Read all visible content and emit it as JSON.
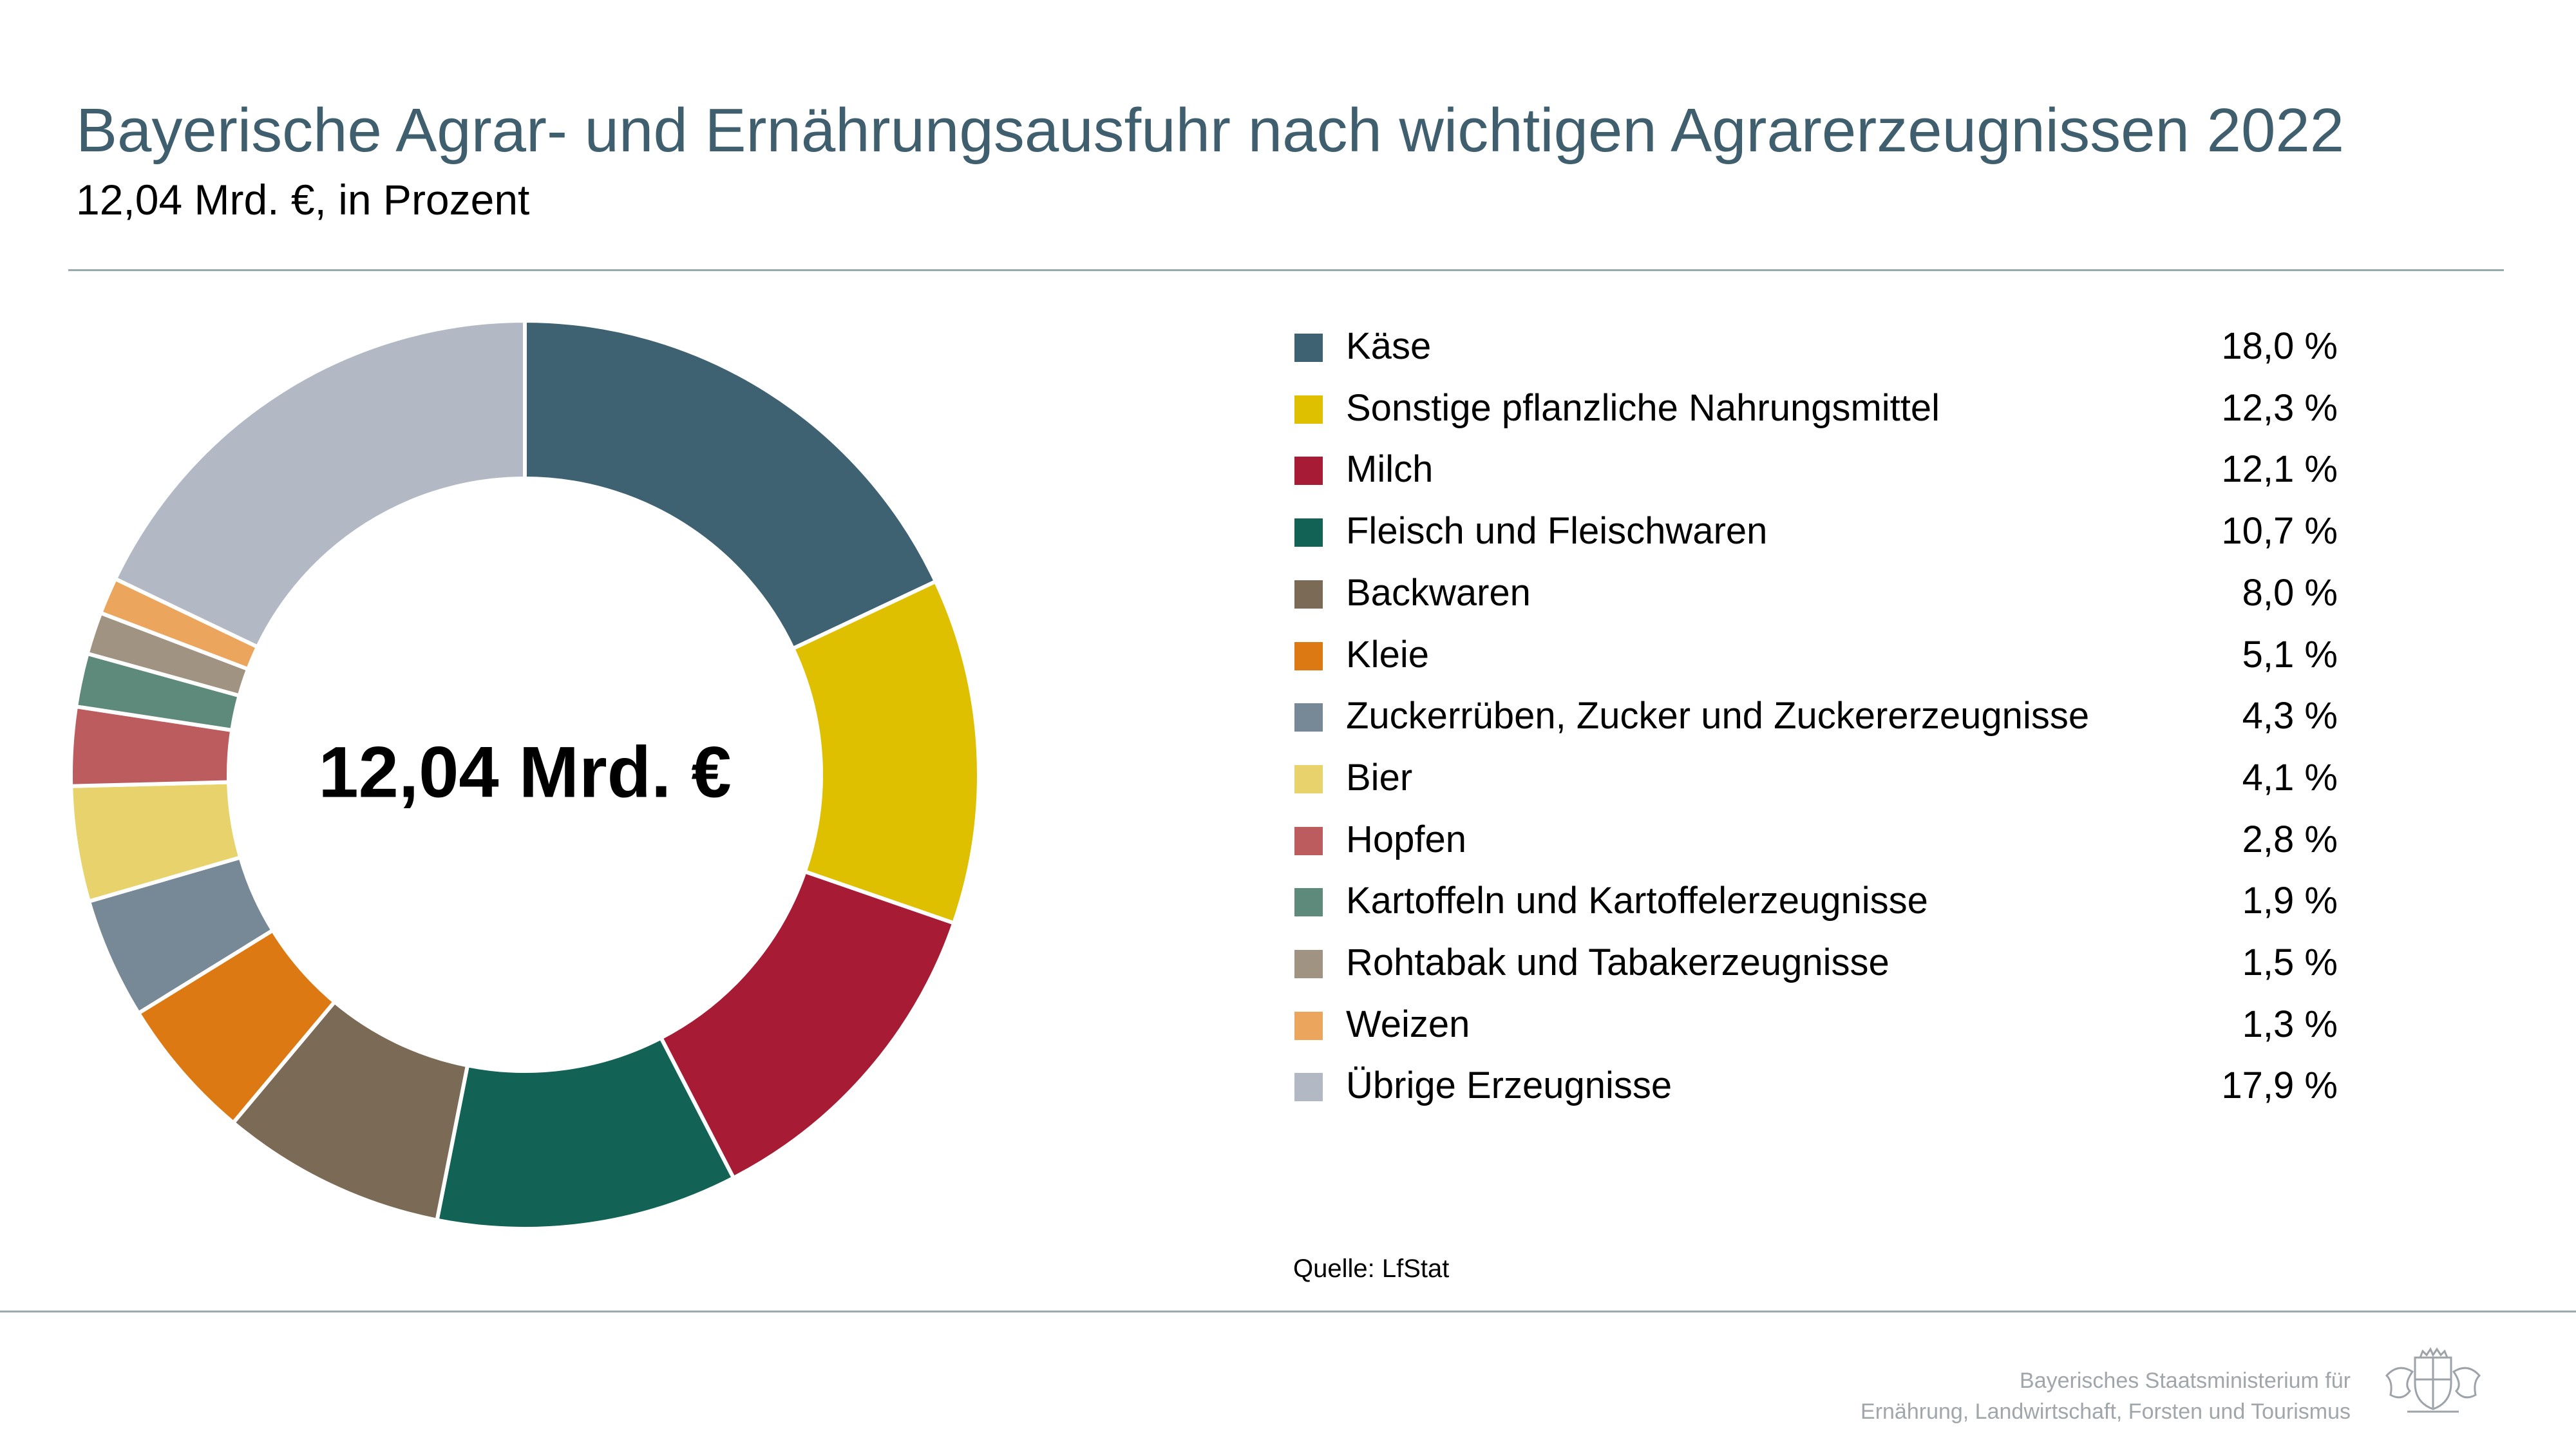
{
  "header": {
    "title": "Bayerische Agrar- und Ernährungsausfuhr nach wichtigen Agrarerzeugnissen 2022",
    "subtitle": "12,04 Mrd. €, in Prozent"
  },
  "chart_data": {
    "type": "pie",
    "center_label": "12,04 Mrd. €",
    "unit": "%",
    "slices": [
      {
        "label": "Käse",
        "value": 18.0,
        "value_label": "18,0 %",
        "color": "#3f6273"
      },
      {
        "label": "Sonstige pflanzliche Nahrungsmittel",
        "value": 12.3,
        "value_label": "12,3 %",
        "color": "#dfc000"
      },
      {
        "label": "Milch",
        "value": 12.1,
        "value_label": "12,1 %",
        "color": "#a71b34"
      },
      {
        "label": "Fleisch und Fleischwaren",
        "value": 10.7,
        "value_label": "10,7 %",
        "color": "#126355"
      },
      {
        "label": "Backwaren",
        "value": 8.0,
        "value_label": "8,0 %",
        "color": "#7b6a55"
      },
      {
        "label": "Kleie",
        "value": 5.1,
        "value_label": "5,1 %",
        "color": "#dc7912"
      },
      {
        "label": "Zuckerrüben, Zucker und Zuckererzeugnisse",
        "value": 4.3,
        "value_label": "4,3 %",
        "color": "#778996"
      },
      {
        "label": "Bier",
        "value": 4.1,
        "value_label": "4,1 %",
        "color": "#e8d26c"
      },
      {
        "label": "Hopfen",
        "value": 2.8,
        "value_label": "2,8 %",
        "color": "#bd5c5e"
      },
      {
        "label": "Kartoffeln und Kartoffelerzeugnisse",
        "value": 1.9,
        "value_label": "1,9 %",
        "color": "#5d8a7b"
      },
      {
        "label": "Rohtabak und Tabakerzeugnisse",
        "value": 1.5,
        "value_label": "1,5 %",
        "color": "#a09382"
      },
      {
        "label": "Weizen",
        "value": 1.3,
        "value_label": "1,3 %",
        "color": "#eba55d"
      },
      {
        "label": "Übrige Erzeugnisse",
        "value": 17.9,
        "value_label": "17,9 %",
        "color": "#b3b9c4"
      }
    ],
    "legend_position": "right"
  },
  "footer": {
    "source": "Quelle: LfStat",
    "ministry_line1": "Bayerisches Staatsministerium für",
    "ministry_line2": "Ernährung, Landwirtschaft, Forsten und Tourismus",
    "logo_icon": "bavarian-coat-of-arms-icon"
  }
}
